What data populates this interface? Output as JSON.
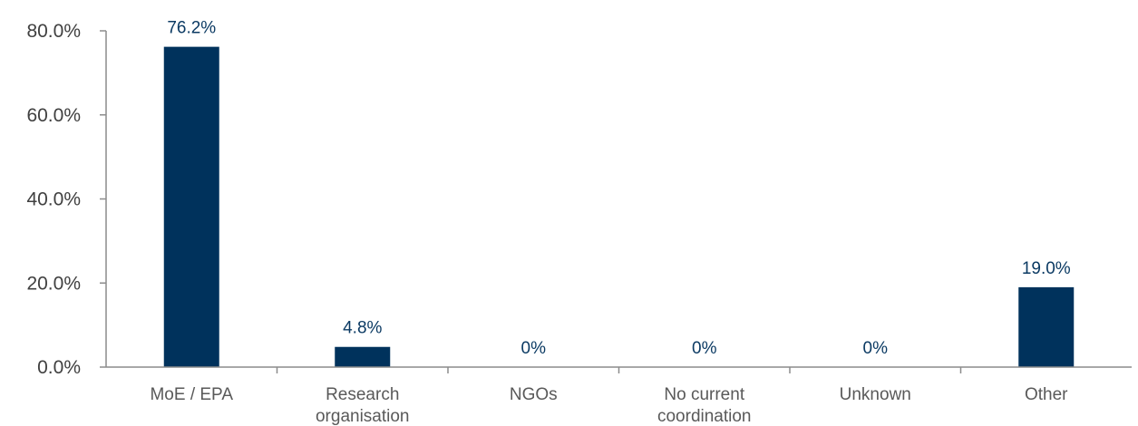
{
  "colors": {
    "bar": "#00325c",
    "data_label": "#0b3a63",
    "axis": "#8c8c8c"
  },
  "chart_data": {
    "type": "bar",
    "title": "",
    "xlabel": "",
    "ylabel": "",
    "categories": [
      [
        "MoE / EPA"
      ],
      [
        "Research",
        "organisation"
      ],
      [
        "NGOs"
      ],
      [
        "No current",
        "coordination"
      ],
      [
        "Unknown"
      ],
      [
        "Other"
      ]
    ],
    "values": [
      76.2,
      4.8,
      0,
      0,
      0,
      19.0
    ],
    "data_labels": [
      "76.2%",
      "4.8%",
      "0%",
      "0%",
      "0%",
      "19.0%"
    ],
    "ylim": [
      0,
      80
    ],
    "yticks": [
      0,
      20,
      40,
      60,
      80
    ],
    "ytick_labels": [
      "0.0%",
      "20.0%",
      "40.0%",
      "60.0%",
      "80.0%"
    ],
    "grid": false,
    "legend": "none"
  }
}
